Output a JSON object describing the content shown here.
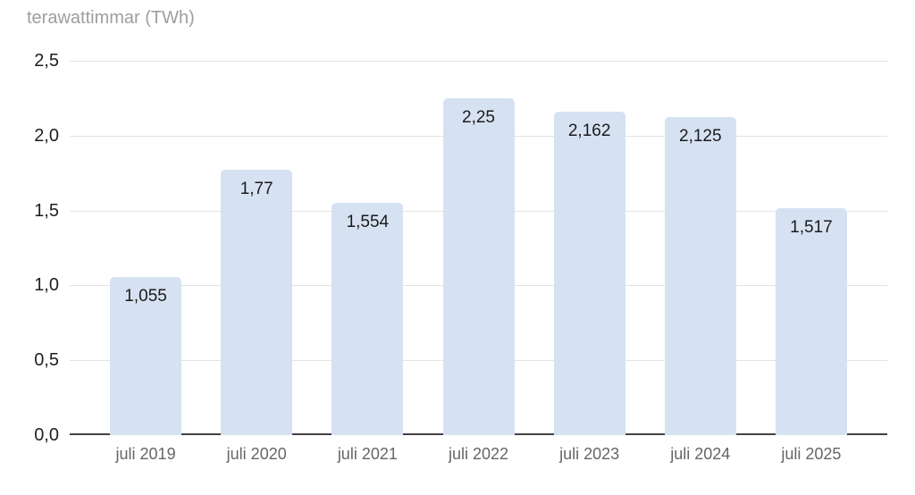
{
  "chart_data": {
    "type": "bar",
    "title": "terawattimmar (TWh)",
    "xlabel": "",
    "ylabel": "terawattimmar (TWh)",
    "categories": [
      "juli 2019",
      "juli 2020",
      "juli 2021",
      "juli 2022",
      "juli 2023",
      "juli 2024",
      "juli 2025"
    ],
    "values": [
      1.055,
      1.77,
      1.554,
      2.25,
      2.162,
      2.125,
      1.517
    ],
    "value_labels": [
      "1,055",
      "1,77",
      "1,554",
      "2,25",
      "2,162",
      "2,125",
      "1,517"
    ],
    "ylim": [
      0,
      2.5
    ],
    "yticks": [
      {
        "value": 2.5,
        "label": "2,5"
      },
      {
        "value": 2.0,
        "label": "2,0"
      },
      {
        "value": 1.5,
        "label": "1,5"
      },
      {
        "value": 1.0,
        "label": "1,0"
      },
      {
        "value": 0.5,
        "label": "0,5"
      },
      {
        "value": 0.0,
        "label": "0,0"
      }
    ],
    "grid": true,
    "legend_position": "none",
    "decimal_separator": ",",
    "colors": {
      "background": "#ffffff",
      "bar_fill": "#d6e2f2",
      "grid_line": "#e3e3e3",
      "axis_line": "#424242",
      "title_text": "#9e9e9e",
      "ytick_text": "#1f1f1f",
      "xtick_text": "#666666",
      "bar_label_text": "#1b1b1b"
    }
  }
}
